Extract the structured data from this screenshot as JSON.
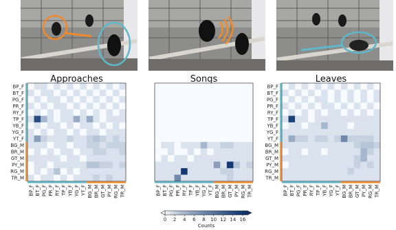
{
  "colorbar": {
    "label": "Counts",
    "ticks": [
      0,
      2,
      4,
      6,
      8,
      10,
      12,
      14,
      16
    ],
    "range": [
      0,
      17
    ],
    "colors": [
      "#f7fbff",
      "#08306b"
    ]
  },
  "groups": {
    "female_color": "#5fb8c9",
    "male_color": "#f08a2c"
  },
  "chart_data": [
    {
      "type": "heatmap",
      "title": "Approaches",
      "row_labels": [
        "BP_F",
        "BT_F",
        "PG_F",
        "PR_F",
        "RY_F",
        "TP_F",
        "YB_F",
        "YG_F",
        "YT_F",
        "BG_M",
        "BR_M",
        "GT_M",
        "PY_M",
        "RG_M",
        "TR_M"
      ],
      "col_labels": [
        "BP_F",
        "BT_F",
        "PG_F",
        "PR_F",
        "RY_F",
        "TP_F",
        "YB_F",
        "YG_F",
        "YT_F",
        "BG_M",
        "BR_M",
        "GT_M",
        "PY_M",
        "RG_M",
        "TR_M"
      ],
      "values": [
        [
          0,
          1,
          1,
          0,
          1,
          0,
          1,
          0,
          1,
          0,
          1,
          0,
          1,
          0,
          1
        ],
        [
          1,
          0,
          1,
          1,
          0,
          1,
          0,
          1,
          0,
          1,
          0,
          1,
          0,
          1,
          0
        ],
        [
          0,
          1,
          0,
          1,
          1,
          0,
          1,
          0,
          1,
          0,
          1,
          0,
          1,
          0,
          1
        ],
        [
          1,
          0,
          1,
          0,
          1,
          1,
          0,
          1,
          0,
          1,
          0,
          1,
          0,
          1,
          0
        ],
        [
          0,
          1,
          0,
          1,
          0,
          1,
          1,
          0,
          1,
          0,
          1,
          0,
          1,
          0,
          1
        ],
        [
          1,
          14,
          4,
          1,
          0,
          1,
          1,
          5,
          1,
          5,
          1,
          0,
          1,
          1,
          1
        ],
        [
          0,
          1,
          0,
          1,
          1,
          0,
          1,
          0,
          1,
          1,
          0,
          1,
          0,
          1,
          0
        ],
        [
          1,
          0,
          1,
          0,
          1,
          1,
          0,
          1,
          0,
          1,
          1,
          0,
          1,
          1,
          1
        ],
        [
          1,
          6,
          2,
          1,
          1,
          1,
          2,
          1,
          1,
          2,
          3,
          2,
          1,
          2,
          1
        ],
        [
          1,
          1,
          1,
          0,
          1,
          1,
          0,
          1,
          1,
          2,
          2,
          1,
          2,
          2,
          2
        ],
        [
          0,
          1,
          0,
          1,
          0,
          1,
          1,
          0,
          1,
          1,
          2,
          2,
          1,
          1,
          2
        ],
        [
          1,
          1,
          1,
          1,
          1,
          0,
          1,
          1,
          0,
          1,
          1,
          1,
          1,
          1,
          1
        ],
        [
          0,
          1,
          1,
          0,
          1,
          1,
          1,
          1,
          1,
          3,
          3,
          2,
          2,
          1,
          2
        ],
        [
          0,
          1,
          0,
          1,
          3,
          0,
          1,
          0,
          1,
          1,
          1,
          1,
          1,
          1,
          1
        ],
        [
          1,
          0,
          1,
          1,
          0,
          1,
          0,
          1,
          1,
          1,
          2,
          1,
          2,
          1,
          1
        ]
      ]
    },
    {
      "type": "heatmap",
      "title": "Songs",
      "row_labels": [],
      "col_labels": [
        "BP_F",
        "BT_F",
        "PG_F",
        "PR_F",
        "RY_F",
        "TP_F",
        "YB_F",
        "YG_F",
        "YT_F",
        "BG_M",
        "BR_M",
        "GT_M",
        "PY_M",
        "RG_M",
        "TR_M"
      ],
      "values": [
        [
          0,
          0,
          0,
          0,
          0,
          0,
          0,
          0,
          0,
          0,
          0,
          0,
          0,
          0,
          0
        ],
        [
          0,
          0,
          0,
          0,
          0,
          0,
          0,
          0,
          0,
          0,
          0,
          0,
          0,
          0,
          0
        ],
        [
          0,
          0,
          0,
          0,
          0,
          0,
          0,
          0,
          0,
          0,
          0,
          0,
          0,
          0,
          0
        ],
        [
          0,
          0,
          0,
          0,
          0,
          0,
          0,
          0,
          0,
          0,
          0,
          0,
          0,
          0,
          0
        ],
        [
          0,
          0,
          0,
          0,
          0,
          0,
          0,
          0,
          0,
          0,
          0,
          0,
          0,
          0,
          0
        ],
        [
          0,
          0,
          0,
          0,
          0,
          0,
          0,
          0,
          0,
          0,
          0,
          0,
          0,
          0,
          0
        ],
        [
          0,
          0,
          0,
          0,
          0,
          0,
          0,
          0,
          0,
          0,
          0,
          0,
          0,
          0,
          0
        ],
        [
          0,
          0,
          0,
          0,
          0,
          0,
          0,
          0,
          0,
          0,
          0,
          0,
          0,
          0,
          0
        ],
        [
          0,
          0,
          0,
          0,
          0,
          0,
          0,
          0,
          0,
          0,
          0,
          0,
          0,
          0,
          0
        ],
        [
          0,
          1,
          1,
          0,
          1,
          1,
          1,
          4,
          1,
          1,
          2,
          2,
          1,
          1,
          1
        ],
        [
          0,
          0,
          1,
          0,
          0,
          1,
          0,
          1,
          0,
          1,
          1,
          1,
          1,
          1,
          1
        ],
        [
          0,
          1,
          0,
          1,
          1,
          0,
          1,
          1,
          1,
          1,
          1,
          1,
          1,
          1,
          1
        ],
        [
          1,
          1,
          1,
          1,
          1,
          1,
          1,
          1,
          1,
          6,
          1,
          16,
          3,
          1,
          2
        ],
        [
          1,
          1,
          1,
          1,
          16,
          1,
          1,
          1,
          1,
          1,
          2,
          2,
          1,
          1,
          1
        ],
        [
          1,
          1,
          1,
          8,
          1,
          1,
          1,
          1,
          1,
          1,
          1,
          2,
          1,
          1,
          1
        ]
      ]
    },
    {
      "type": "heatmap",
      "title": "Leaves",
      "row_labels": [
        "BP_F",
        "BT_F",
        "PG_F",
        "PR_F",
        "RY_F",
        "TP_F",
        "YB_F",
        "YG_F",
        "YT_F",
        "BG_M",
        "BR_M",
        "GT_M",
        "PY_M",
        "RG_M",
        "TR_M"
      ],
      "col_labels": [
        "BP_F",
        "BT_F",
        "PG_F",
        "PR_F",
        "RY_F",
        "TP_F",
        "YB_F",
        "YG_F",
        "YT_F",
        "BG_M",
        "BR_M",
        "GT_M",
        "PY_M",
        "RG_M",
        "TR_M"
      ],
      "values": [
        [
          0,
          1,
          0,
          1,
          0,
          1,
          0,
          1,
          0,
          1,
          0,
          1,
          0,
          1,
          0
        ],
        [
          1,
          0,
          1,
          0,
          1,
          0,
          1,
          0,
          1,
          0,
          1,
          0,
          1,
          0,
          1
        ],
        [
          0,
          1,
          0,
          1,
          0,
          1,
          1,
          0,
          1,
          0,
          1,
          0,
          1,
          0,
          1
        ],
        [
          1,
          0,
          1,
          0,
          1,
          0,
          1,
          1,
          0,
          1,
          0,
          1,
          0,
          1,
          0
        ],
        [
          0,
          1,
          0,
          1,
          0,
          1,
          0,
          1,
          1,
          0,
          1,
          0,
          1,
          0,
          1
        ],
        [
          1,
          15,
          1,
          1,
          0,
          1,
          1,
          1,
          1,
          1,
          1,
          1,
          1,
          1,
          1
        ],
        [
          0,
          1,
          1,
          0,
          1,
          1,
          4,
          1,
          1,
          1,
          0,
          1,
          1,
          1,
          1
        ],
        [
          1,
          1,
          1,
          1,
          1,
          1,
          1,
          1,
          1,
          1,
          1,
          1,
          1,
          1,
          1
        ],
        [
          1,
          5,
          2,
          2,
          1,
          2,
          2,
          1,
          2,
          8,
          2,
          2,
          2,
          2,
          1
        ],
        [
          1,
          1,
          1,
          1,
          1,
          1,
          1,
          1,
          1,
          1,
          1,
          2,
          3,
          3,
          2
        ],
        [
          0,
          1,
          1,
          0,
          1,
          1,
          0,
          1,
          1,
          1,
          1,
          1,
          4,
          2,
          1
        ],
        [
          1,
          1,
          1,
          1,
          1,
          1,
          1,
          1,
          1,
          1,
          1,
          2,
          4,
          1,
          1
        ],
        [
          0,
          1,
          1,
          1,
          1,
          1,
          1,
          1,
          1,
          1,
          1,
          2,
          1,
          2,
          1
        ],
        [
          1,
          1,
          1,
          1,
          1,
          1,
          1,
          1,
          1,
          1,
          2,
          1,
          1,
          1,
          1
        ],
        [
          1,
          1,
          1,
          1,
          1,
          1,
          1,
          1,
          1,
          1,
          1,
          1,
          1,
          1,
          1
        ]
      ]
    }
  ]
}
